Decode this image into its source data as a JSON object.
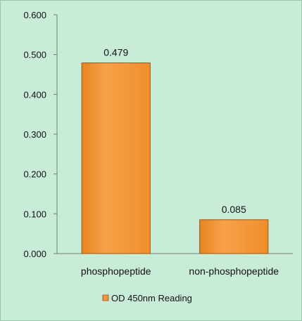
{
  "chart_data": {
    "type": "bar",
    "title": "",
    "xlabel": "",
    "ylabel": "",
    "categories": [
      "phosphopeptide",
      "non-phosphopeptide"
    ],
    "series": [
      {
        "name": "OD 450nm Reading",
        "values": [
          0.479,
          0.085
        ],
        "data_labels": [
          "0.479",
          "0.085"
        ]
      }
    ],
    "ylim": [
      0,
      0.6
    ],
    "yticks": [
      0.0,
      0.1,
      0.2,
      0.3,
      0.4,
      0.5,
      0.6
    ],
    "ytick_labels": [
      "0.000",
      "0.100",
      "0.200",
      "0.300",
      "0.400",
      "0.500",
      "0.600"
    ],
    "grid": false,
    "legend_position": "bottom"
  },
  "colors": {
    "background": "#c9ecd9",
    "axis": "#6f7f78",
    "bar_fill_light": "#f8a24a",
    "bar_fill_dark": "#e6851f",
    "bar_stroke": "#a3520c"
  }
}
